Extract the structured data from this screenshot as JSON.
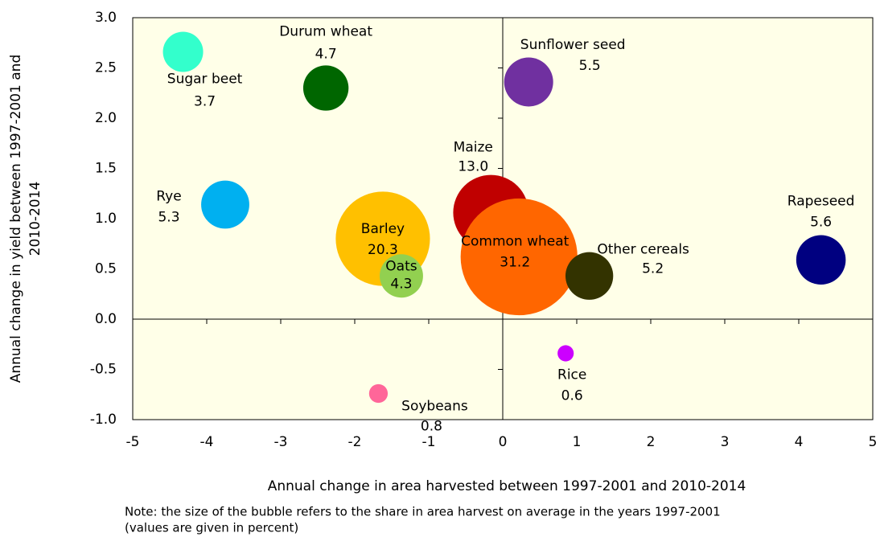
{
  "chart_data": {
    "type": "bubble",
    "labels": [
      "Sugar beet",
      "Durum wheat",
      "Sunflower seed",
      "Rye",
      "Maize",
      "Barley",
      "Oats",
      "Common wheat",
      "Other cereals",
      "Rapeseed",
      "Rice",
      "Soybeans"
    ],
    "x": [
      -4.32,
      -2.39,
      0.35,
      -3.75,
      -0.16,
      -1.62,
      -1.37,
      0.22,
      1.17,
      4.3,
      0.85,
      -1.68
    ],
    "values": [
      2.66,
      2.3,
      2.36,
      1.14,
      1.06,
      0.8,
      0.43,
      0.62,
      0.43,
      0.59,
      -0.34,
      -0.74
    ],
    "sizes": [
      3.7,
      4.7,
      5.5,
      5.3,
      13.0,
      20.3,
      4.3,
      31.2,
      5.2,
      5.6,
      0.6,
      0.8
    ],
    "size_labels": [
      "3.7",
      "4.7",
      "5.5",
      "5.3",
      "13.0",
      "20.3",
      "4.3",
      "31.2",
      "5.2",
      "5.6",
      "0.6",
      "0.8"
    ],
    "colors": [
      "#33ffcc",
      "#006600",
      "#7030a0",
      "#00b0f0",
      "#c00000",
      "#ffc000",
      "#92d050",
      "#ff6600",
      "#333300",
      "#000080",
      "#cc00ff",
      "#ff6699"
    ],
    "xlim": [
      -5,
      5
    ],
    "xticks": [
      -5,
      -4,
      -3,
      -2,
      -1,
      0,
      1,
      2,
      3,
      4,
      5
    ],
    "ylim": [
      -1.0,
      3.0
    ],
    "yticks": [
      {
        "value": 3.0,
        "label": "3.0"
      },
      {
        "value": 2.5,
        "label": "2.5"
      },
      {
        "value": 2.0,
        "label": "2.0"
      },
      {
        "value": 1.5,
        "label": "1.5"
      },
      {
        "value": 1.0,
        "label": "1.0"
      },
      {
        "value": 0.5,
        "label": "0.5"
      },
      {
        "value": 0.0,
        "label": "0.0"
      },
      {
        "value": -0.5,
        "label": "-0.5"
      },
      {
        "value": -1.0,
        "label": "-1.0"
      }
    ],
    "xlabel": "Annual change in area harvested between 1997-2001 and 2010-2014",
    "ylabel": [
      "Annual change in yield between 1997-2001 and",
      "2010-2014"
    ],
    "note": [
      "Note: the size of the bubble refers to the  share in area harvest on average in the years 1997-2001",
      "(values are given in percent)"
    ],
    "background": "#ffffe8"
  }
}
